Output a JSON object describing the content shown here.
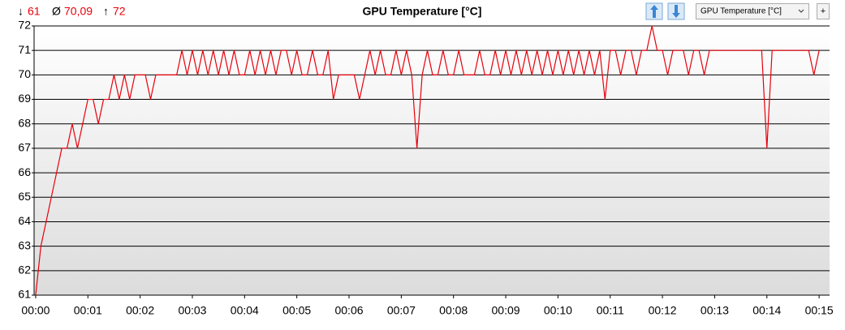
{
  "stats": [
    {
      "symbol": "↓",
      "value": "61"
    },
    {
      "symbol": "Ø",
      "value": "70,09"
    },
    {
      "symbol": "↑",
      "value": "72"
    }
  ],
  "toolbar": {
    "selector": "GPU Temperature [°C]",
    "add_button": "+"
  },
  "chart_data": {
    "type": "line",
    "title": "GPU Temperature [°C]",
    "x": [
      0,
      0.1,
      0.2,
      0.3,
      0.4,
      0.5,
      0.6,
      0.7,
      0.8,
      0.9,
      1,
      1.1,
      1.2,
      1.3,
      1.4,
      1.5,
      1.6,
      1.7,
      1.8,
      1.9,
      2,
      2.1,
      2.2,
      2.3,
      2.4,
      2.5,
      2.6,
      2.7,
      2.8,
      2.9,
      3,
      3.1,
      3.2,
      3.3,
      3.4,
      3.5,
      3.6,
      3.7,
      3.8,
      3.9,
      4,
      4.1,
      4.2,
      4.3,
      4.4,
      4.5,
      4.6,
      4.7,
      4.8,
      4.9,
      5,
      5.1,
      5.2,
      5.3,
      5.4,
      5.5,
      5.6,
      5.7,
      5.8,
      5.9,
      6,
      6.1,
      6.2,
      6.3,
      6.4,
      6.5,
      6.6,
      6.7,
      6.8,
      6.9,
      7,
      7.1,
      7.2,
      7.3,
      7.4,
      7.5,
      7.6,
      7.7,
      7.8,
      7.9,
      8,
      8.1,
      8.2,
      8.3,
      8.4,
      8.5,
      8.6,
      8.7,
      8.8,
      8.9,
      9,
      9.1,
      9.2,
      9.3,
      9.4,
      9.5,
      9.6,
      9.7,
      9.8,
      9.9,
      10,
      10.1,
      10.2,
      10.3,
      10.4,
      10.5,
      10.6,
      10.7,
      10.8,
      10.9,
      11,
      11.1,
      11.2,
      11.3,
      11.4,
      11.5,
      11.6,
      11.7,
      11.8,
      11.9,
      12,
      12.1,
      12.2,
      12.3,
      12.4,
      12.5,
      12.6,
      12.7,
      12.8,
      12.9,
      13,
      13.1,
      13.2,
      13.3,
      13.4,
      13.5,
      13.6,
      13.7,
      13.8,
      13.9,
      14,
      14.1,
      14.2,
      14.3,
      14.4,
      14.5,
      14.6,
      14.7,
      14.8,
      14.9,
      15
    ],
    "series": [
      {
        "name": "GPU Temperature [°C]",
        "color": "#e8000b",
        "values": [
          61,
          63,
          64,
          65,
          66,
          67,
          67,
          68,
          67,
          68,
          69,
          69,
          68,
          69,
          69,
          70,
          69,
          70,
          69,
          70,
          70,
          70,
          69,
          70,
          70,
          70,
          70,
          70,
          71,
          70,
          71,
          70,
          71,
          70,
          71,
          70,
          71,
          70,
          71,
          70,
          70,
          71,
          70,
          71,
          70,
          71,
          70,
          71,
          71,
          70,
          71,
          70,
          70,
          71,
          70,
          70,
          71,
          69,
          70,
          70,
          70,
          70,
          69,
          70,
          71,
          70,
          71,
          70,
          70,
          71,
          70,
          71,
          70,
          67,
          70,
          71,
          70,
          70,
          71,
          70,
          70,
          71,
          70,
          70,
          70,
          71,
          70,
          70,
          71,
          70,
          71,
          70,
          71,
          70,
          71,
          70,
          71,
          70,
          71,
          70,
          71,
          70,
          71,
          70,
          71,
          70,
          71,
          70,
          71,
          69,
          71,
          71,
          70,
          71,
          71,
          70,
          71,
          71,
          72,
          71,
          71,
          70,
          71,
          71,
          71,
          70,
          71,
          71,
          70,
          71,
          71,
          71,
          71,
          71,
          71,
          71,
          71,
          71,
          71,
          71,
          67,
          71,
          71,
          71,
          71,
          71,
          71,
          71,
          71,
          70,
          71
        ]
      }
    ],
    "xlim": [
      -0.03,
      15.2
    ],
    "xticks": [
      {
        "value": 0,
        "label": "00:00"
      },
      {
        "value": 1,
        "label": "00:01"
      },
      {
        "value": 2,
        "label": "00:02"
      },
      {
        "value": 3,
        "label": "00:03"
      },
      {
        "value": 4,
        "label": "00:04"
      },
      {
        "value": 5,
        "label": "00:05"
      },
      {
        "value": 6,
        "label": "00:06"
      },
      {
        "value": 7,
        "label": "00:07"
      },
      {
        "value": 8,
        "label": "00:08"
      },
      {
        "value": 9,
        "label": "00:09"
      },
      {
        "value": 10,
        "label": "00:10"
      },
      {
        "value": 11,
        "label": "00:11"
      },
      {
        "value": 12,
        "label": "00:12"
      },
      {
        "value": 13,
        "label": "00:13"
      },
      {
        "value": 14,
        "label": "00:14"
      },
      {
        "value": 15,
        "label": "00:15"
      }
    ],
    "ylim": [
      61,
      72
    ],
    "yticks": [
      61,
      62,
      63,
      64,
      65,
      66,
      67,
      68,
      69,
      70,
      71,
      72
    ],
    "grid": true
  }
}
